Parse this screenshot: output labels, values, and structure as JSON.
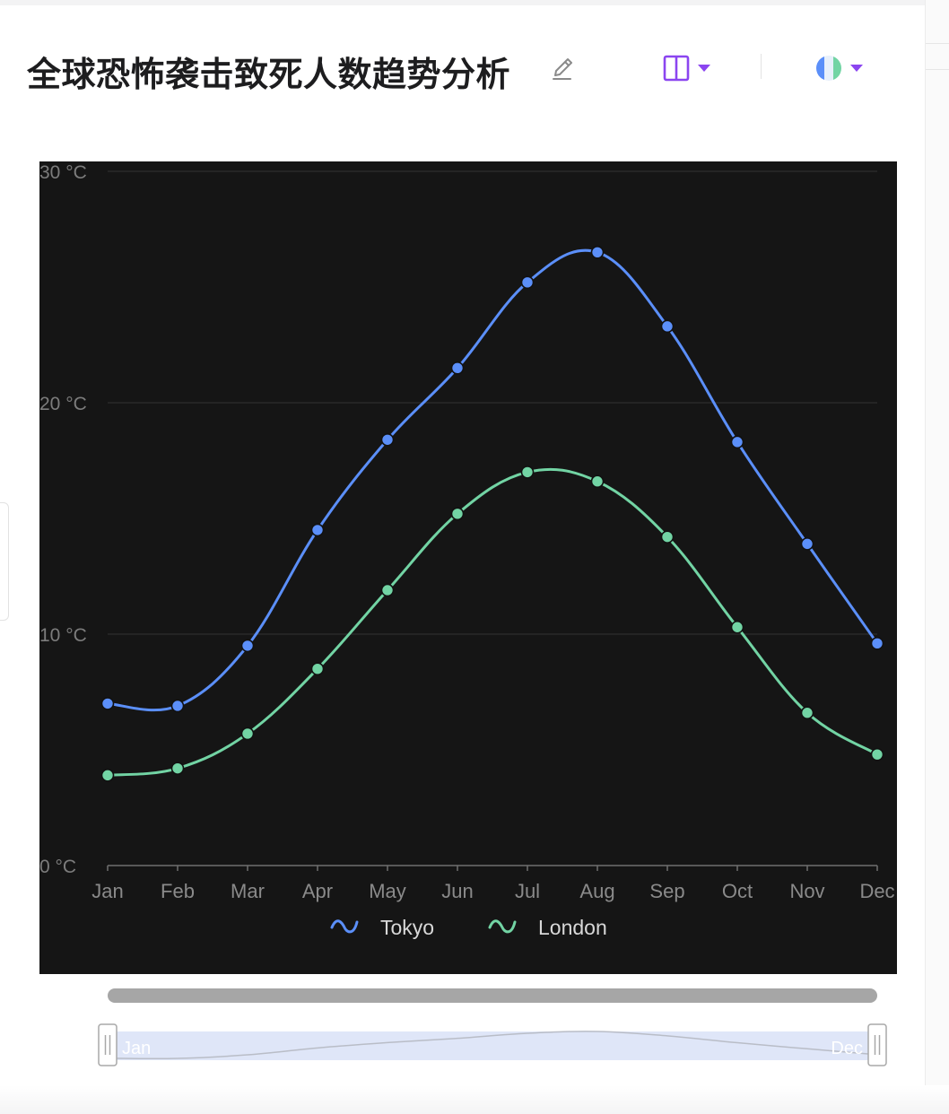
{
  "header": {
    "title": "全球恐怖袭击致死人数趋势分析"
  },
  "icons": {
    "edit": "pencil-edit-icon",
    "layout": "split-columns-icon",
    "theme": "color-theme-icon",
    "dropdown": "caret-down-icon",
    "zoom_handle": "drag-handle-icon"
  },
  "colors": {
    "accent": "#8b45f0",
    "chart_background": "#151515",
    "tokyo": "#5b8ff9",
    "london": "#72d4a4"
  },
  "chart_data": {
    "type": "line",
    "smooth": true,
    "categories": [
      "Jan",
      "Feb",
      "Mar",
      "Apr",
      "May",
      "Jun",
      "Jul",
      "Aug",
      "Sep",
      "Oct",
      "Nov",
      "Dec"
    ],
    "series": [
      {
        "name": "Tokyo",
        "color": "#5b8ff9",
        "values": [
          7.0,
          6.9,
          9.5,
          14.5,
          18.4,
          21.5,
          25.2,
          26.5,
          23.3,
          18.3,
          13.9,
          9.6
        ]
      },
      {
        "name": "London",
        "color": "#72d4a4",
        "values": [
          3.9,
          4.2,
          5.7,
          8.5,
          11.9,
          15.2,
          17.0,
          16.6,
          14.2,
          10.3,
          6.6,
          4.8
        ]
      }
    ],
    "ylim": [
      0,
      30
    ],
    "y_ticks": [
      0,
      10,
      20,
      30
    ],
    "y_tick_labels": [
      "0 °C",
      "10 °C",
      "20 °C",
      "30 °C"
    ],
    "grid": true,
    "legend_position": "bottom-center",
    "data_zoom": {
      "start": 0,
      "end": 1,
      "start_label": "Jan",
      "end_label": "Dec"
    }
  }
}
